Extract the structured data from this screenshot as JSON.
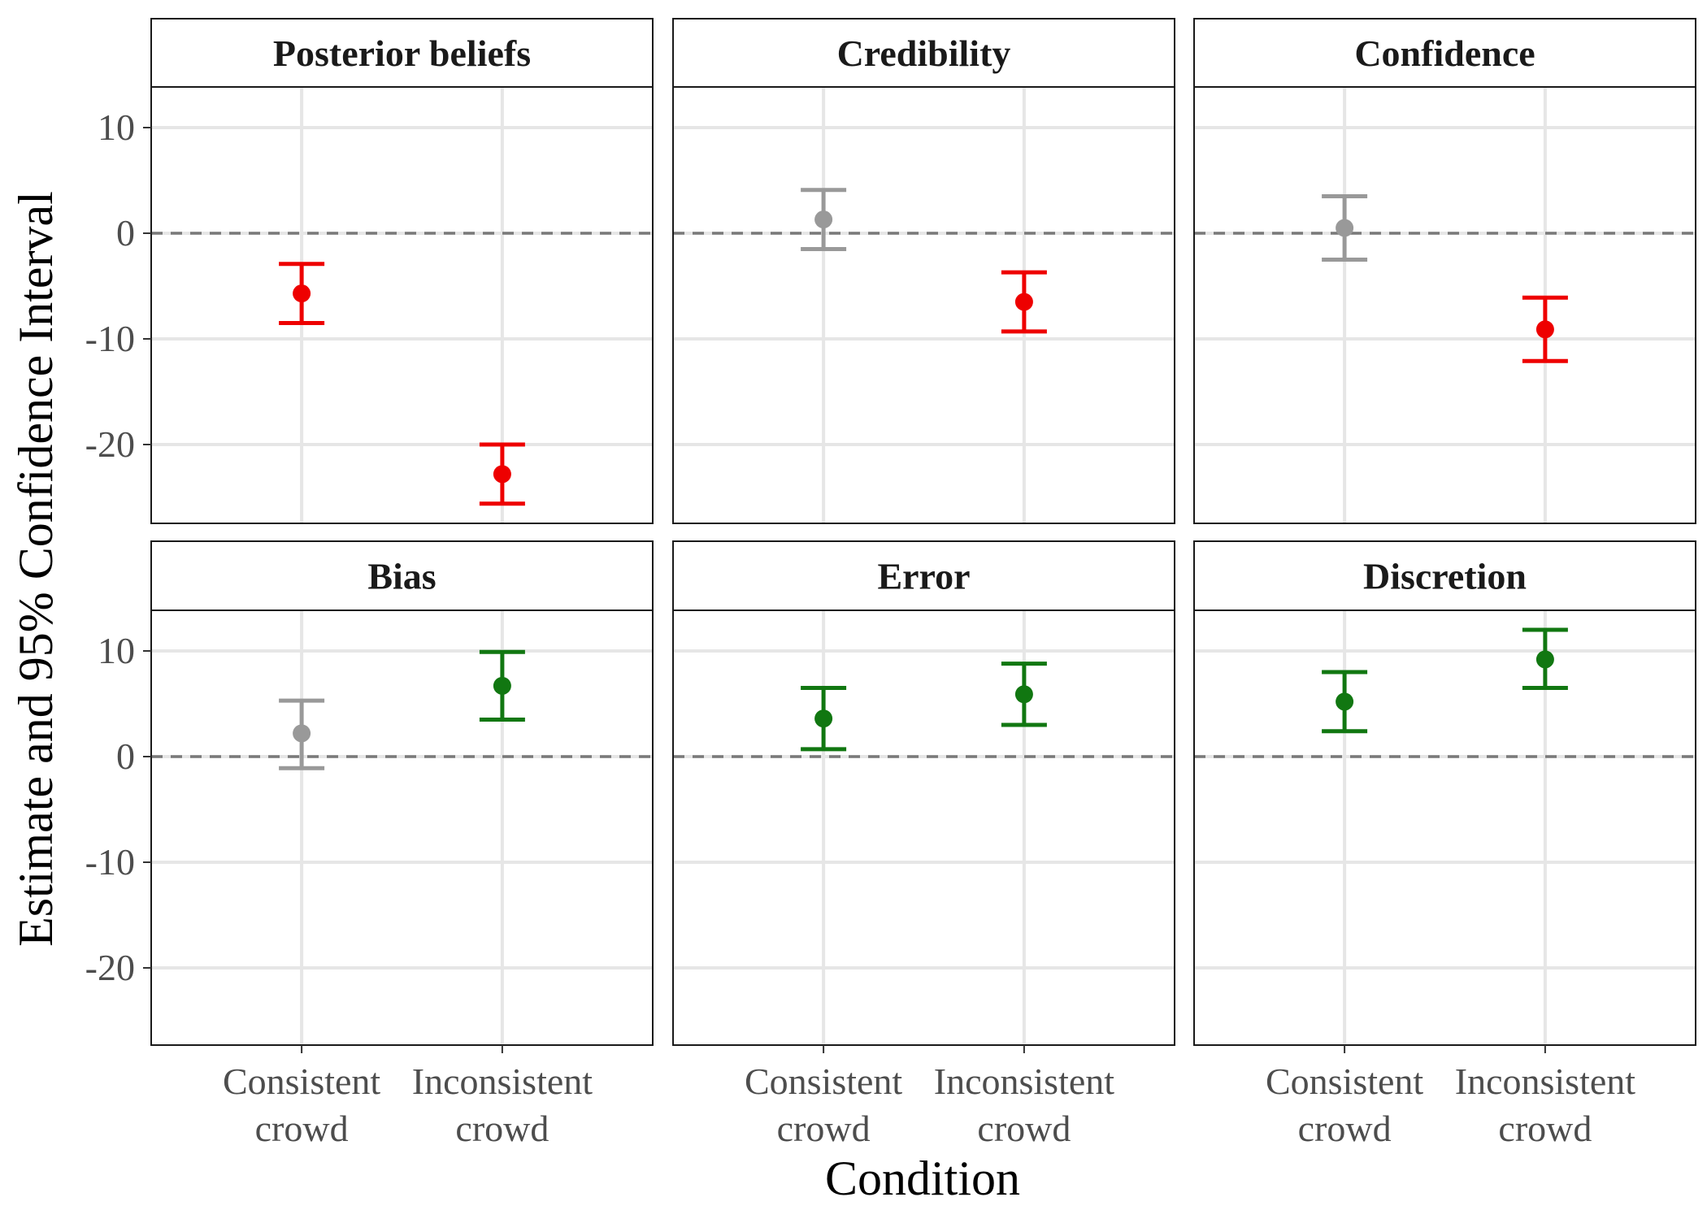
{
  "chart_data": {
    "type": "scatter",
    "subtype": "point-errorbar-facets",
    "xlabel": "Condition",
    "ylabel": "Estimate and 95% Confidence Interval",
    "categories": [
      [
        "Consistent",
        "crowd"
      ],
      [
        "Inconsistent",
        "crowd"
      ]
    ],
    "ylim": [
      -27,
      20
    ],
    "yticks": [
      10,
      0,
      -10,
      -20
    ],
    "ytick_labels": [
      "10",
      "0",
      "-10",
      "-20"
    ],
    "reference_line": 0,
    "grid": true,
    "colors": {
      "negative": "#ee0000",
      "neutral": "#999999",
      "positive": "#117711",
      "reference": "#7a7a7a",
      "grid_major": "#e6e6e6",
      "grid_minor": "#f2f2f2",
      "strip_text": "#1a1a1a"
    },
    "panels": [
      {
        "title": "Posterior beliefs",
        "points": [
          {
            "estimate": -5.7,
            "lower": -8.5,
            "upper": -2.9,
            "color": "negative"
          },
          {
            "estimate": -22.8,
            "lower": -25.6,
            "upper": -20.0,
            "color": "negative"
          }
        ]
      },
      {
        "title": "Credibility",
        "points": [
          {
            "estimate": 1.3,
            "lower": -1.5,
            "upper": 4.1,
            "color": "neutral"
          },
          {
            "estimate": -6.5,
            "lower": -9.3,
            "upper": -3.7,
            "color": "negative"
          }
        ]
      },
      {
        "title": "Confidence",
        "points": [
          {
            "estimate": 0.5,
            "lower": -2.5,
            "upper": 3.5,
            "color": "neutral"
          },
          {
            "estimate": -9.1,
            "lower": -12.1,
            "upper": -6.1,
            "color": "negative"
          }
        ]
      },
      {
        "title": "Bias",
        "points": [
          {
            "estimate": 2.2,
            "lower": -1.1,
            "upper": 5.3,
            "color": "neutral"
          },
          {
            "estimate": 6.7,
            "lower": 3.5,
            "upper": 9.9,
            "color": "positive"
          }
        ]
      },
      {
        "title": "Error",
        "points": [
          {
            "estimate": 3.6,
            "lower": 0.7,
            "upper": 6.5,
            "color": "positive"
          },
          {
            "estimate": 5.9,
            "lower": 3.0,
            "upper": 8.8,
            "color": "positive"
          }
        ]
      },
      {
        "title": "Discretion",
        "points": [
          {
            "estimate": 5.2,
            "lower": 2.4,
            "upper": 8.0,
            "color": "positive"
          },
          {
            "estimate": 9.2,
            "lower": 6.5,
            "upper": 12.0,
            "color": "positive"
          }
        ]
      }
    ]
  }
}
